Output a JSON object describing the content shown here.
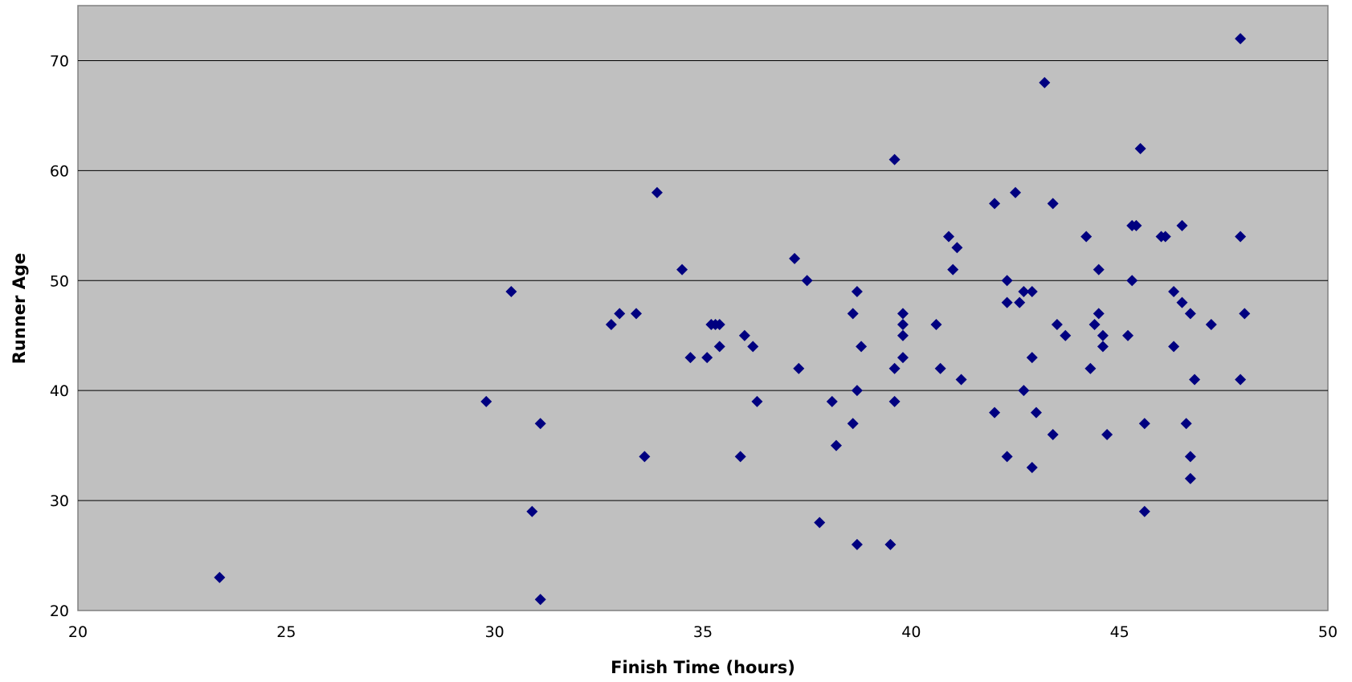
{
  "chart_data": {
    "type": "scatter",
    "title": "",
    "xlabel": "Finish Time (hours)",
    "ylabel": "Runner Age",
    "xlim": [
      20,
      50
    ],
    "ylim": [
      20,
      75
    ],
    "x_ticks": [
      20,
      25,
      30,
      35,
      40,
      45,
      50
    ],
    "y_ticks": [
      20,
      30,
      40,
      50,
      60,
      70
    ],
    "grid": "horizontal",
    "legend": "none",
    "colors": {
      "plot_background": "#c0c0c0",
      "marker": "#000080",
      "gridline": "#000000"
    },
    "marker": "diamond",
    "series": [
      {
        "points": [
          [
            23.4,
            23
          ],
          [
            29.8,
            39
          ],
          [
            30.4,
            49
          ],
          [
            30.9,
            29
          ],
          [
            31.1,
            37
          ],
          [
            31.1,
            21
          ],
          [
            32.8,
            46
          ],
          [
            33.0,
            47
          ],
          [
            33.4,
            47
          ],
          [
            33.6,
            34
          ],
          [
            33.9,
            58
          ],
          [
            34.5,
            51
          ],
          [
            34.7,
            43
          ],
          [
            35.1,
            43
          ],
          [
            35.2,
            46
          ],
          [
            35.3,
            46
          ],
          [
            35.4,
            46
          ],
          [
            35.4,
            44
          ],
          [
            35.9,
            34
          ],
          [
            36.0,
            45
          ],
          [
            36.2,
            44
          ],
          [
            36.3,
            39
          ],
          [
            37.2,
            52
          ],
          [
            37.3,
            42
          ],
          [
            37.5,
            50
          ],
          [
            37.8,
            28
          ],
          [
            38.1,
            39
          ],
          [
            38.2,
            35
          ],
          [
            38.6,
            37
          ],
          [
            38.6,
            47
          ],
          [
            38.7,
            26
          ],
          [
            38.7,
            49
          ],
          [
            38.7,
            40
          ],
          [
            38.8,
            44
          ],
          [
            39.6,
            61
          ],
          [
            39.6,
            39
          ],
          [
            39.6,
            42
          ],
          [
            39.5,
            26
          ],
          [
            39.8,
            46
          ],
          [
            39.8,
            45
          ],
          [
            39.8,
            43
          ],
          [
            39.8,
            47
          ],
          [
            40.6,
            46
          ],
          [
            40.7,
            42
          ],
          [
            40.9,
            54
          ],
          [
            41.0,
            51
          ],
          [
            41.1,
            53
          ],
          [
            41.2,
            41
          ],
          [
            42.0,
            57
          ],
          [
            42.0,
            38
          ],
          [
            42.3,
            50
          ],
          [
            42.3,
            48
          ],
          [
            42.3,
            34
          ],
          [
            42.5,
            58
          ],
          [
            42.6,
            48
          ],
          [
            42.7,
            49
          ],
          [
            42.7,
            40
          ],
          [
            42.9,
            43
          ],
          [
            42.9,
            49
          ],
          [
            42.9,
            33
          ],
          [
            43.0,
            38
          ],
          [
            43.2,
            68
          ],
          [
            43.4,
            57
          ],
          [
            43.4,
            36
          ],
          [
            43.5,
            46
          ],
          [
            43.7,
            45
          ],
          [
            44.2,
            54
          ],
          [
            44.4,
            46
          ],
          [
            44.3,
            42
          ],
          [
            44.5,
            51
          ],
          [
            44.5,
            47
          ],
          [
            44.6,
            45
          ],
          [
            44.6,
            44
          ],
          [
            44.7,
            36
          ],
          [
            45.2,
            45
          ],
          [
            45.3,
            50
          ],
          [
            45.3,
            55
          ],
          [
            45.4,
            55
          ],
          [
            45.5,
            62
          ],
          [
            45.6,
            37
          ],
          [
            45.6,
            29
          ],
          [
            46.0,
            54
          ],
          [
            46.1,
            54
          ],
          [
            46.3,
            49
          ],
          [
            46.3,
            44
          ],
          [
            46.5,
            55
          ],
          [
            46.5,
            48
          ],
          [
            46.6,
            37
          ],
          [
            46.7,
            47
          ],
          [
            46.7,
            34
          ],
          [
            46.7,
            32
          ],
          [
            46.8,
            41
          ],
          [
            47.2,
            46
          ],
          [
            47.9,
            72
          ],
          [
            47.9,
            54
          ],
          [
            47.9,
            41
          ],
          [
            48.0,
            47
          ]
        ]
      }
    ]
  }
}
